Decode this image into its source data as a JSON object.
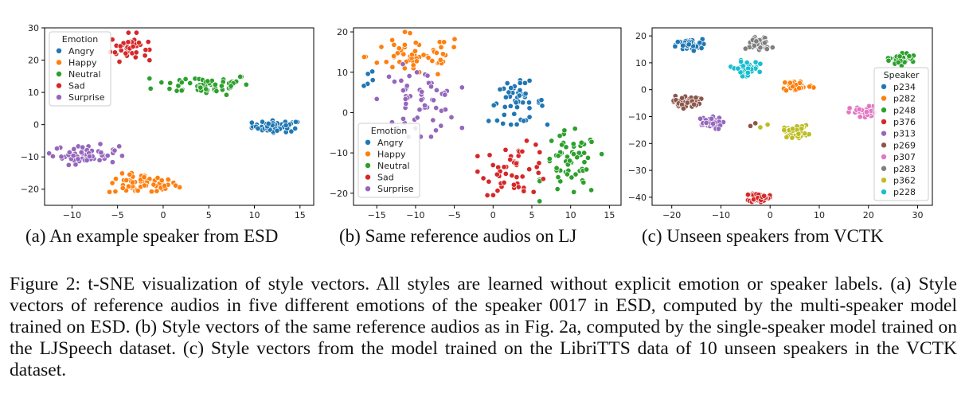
{
  "subcaptions": [
    "(a)  An example speaker from ESD",
    "(b)  Same reference audios on LJ",
    "(c)  Unseen speakers from VCTK"
  ],
  "figure_caption": "Figure 2: t-SNE visualization of style vectors.  All styles are learned without explicit emotion or speaker labels. (a) Style vectors of reference audios in five different emotions of the speaker 0017 in ESD, computed by the multi-speaker model trained on ESD. (b) Style vectors of the same reference audios as in Fig. 2a, computed by the single-speaker model trained on the LJSpeech dataset. (c) Style vectors from the model trained on the LibriTTS data of 10 unseen speakers in the VCTK dataset.",
  "chart_data": [
    {
      "type": "scatter",
      "legend_title": "Emotion",
      "legend_position": "top-left",
      "grid": false,
      "xlim": [
        -13,
        16.5
      ],
      "ylim": [
        -25,
        30
      ],
      "xticks": [
        -10,
        -5,
        0,
        5,
        10,
        15
      ],
      "yticks": [
        -20,
        -10,
        0,
        10,
        20,
        30
      ],
      "series": [
        {
          "name": "Angry",
          "color": "#1f77b4",
          "clusters": [
            [
              9.5,
              -2.5,
              15.5,
              1.5,
              60,
              "blob"
            ]
          ]
        },
        {
          "name": "Happy",
          "color": "#ff7f0e",
          "clusters": [
            [
              -6.5,
              -22,
              2,
              -15,
              60,
              "blob"
            ]
          ]
        },
        {
          "name": "Neutral",
          "color": "#2ca02c",
          "clusters": [
            [
              -1.5,
              9,
              10.5,
              16,
              60,
              "blob"
            ]
          ]
        },
        {
          "name": "Sad",
          "color": "#d62728",
          "clusters": [
            [
              -6,
              19.5,
              -1.5,
              28.5,
              40,
              "blob"
            ]
          ]
        },
        {
          "name": "Surprise",
          "color": "#9467bd",
          "clusters": [
            [
              -12.5,
              -12.5,
              -4.5,
              -6,
              60,
              "blob"
            ]
          ]
        }
      ]
    },
    {
      "type": "scatter",
      "legend_title": "Emotion",
      "legend_position": "lower-left",
      "grid": false,
      "xlim": [
        -18,
        16.5
      ],
      "ylim": [
        -23,
        21
      ],
      "xticks": [
        -15,
        -10,
        -5,
        0,
        5,
        10,
        15
      ],
      "yticks": [
        -20,
        -10,
        0,
        10,
        20
      ],
      "series": [
        {
          "name": "Angry",
          "color": "#1f77b4",
          "clusters": [
            [
              -1,
              -3,
              7,
              8,
              50,
              "blob"
            ],
            [
              -17,
              5,
              -15,
              12,
              5,
              "blob"
            ]
          ]
        },
        {
          "name": "Happy",
          "color": "#ff7f0e",
          "clusters": [
            [
              -17,
              8,
              -3,
              20,
              60,
              "blob"
            ]
          ]
        },
        {
          "name": "Neutral",
          "color": "#2ca02c",
          "clusters": [
            [
              6,
              -22,
              14,
              -4,
              60,
              "blob"
            ]
          ]
        },
        {
          "name": "Sad",
          "color": "#d62728",
          "clusters": [
            [
              -2,
              -21,
              8,
              -7,
              50,
              "blob"
            ]
          ]
        },
        {
          "name": "Surprise",
          "color": "#9467bd",
          "clusters": [
            [
              -15,
              -6,
              -4,
              12,
              60,
              "blob"
            ]
          ]
        }
      ]
    },
    {
      "type": "scatter",
      "legend_title": "Speaker",
      "legend_position": "right",
      "grid": false,
      "xlim": [
        -24,
        33
      ],
      "ylim": [
        -43,
        23
      ],
      "xticks": [
        -20,
        -10,
        0,
        10,
        20,
        30
      ],
      "yticks": [
        -40,
        -30,
        -20,
        -10,
        0,
        10,
        20
      ],
      "series": [
        {
          "name": "p234",
          "color": "#1f77b4",
          "clusters": [
            [
              -19.5,
              14,
              -13.5,
              19,
              45,
              "blob"
            ]
          ]
        },
        {
          "name": "p282",
          "color": "#ff7f0e",
          "clusters": [
            [
              2,
              -1,
              9,
              4,
              45,
              "blob"
            ]
          ]
        },
        {
          "name": "p248",
          "color": "#2ca02c",
          "clusters": [
            [
              24,
              9,
              30,
              14,
              45,
              "blob"
            ]
          ]
        },
        {
          "name": "p376",
          "color": "#d62728",
          "clusters": [
            [
              -4.5,
              -42,
              0,
              -38,
              40,
              "blob"
            ]
          ]
        },
        {
          "name": "p313",
          "color": "#9467bd",
          "clusters": [
            [
              -15.5,
              -15,
              -9.5,
              -10,
              45,
              "blob"
            ]
          ]
        },
        {
          "name": "p269",
          "color": "#8c564b",
          "clusters": [
            [
              -20,
              -7,
              -14,
              -2,
              45,
              "blob"
            ],
            [
              -4,
              -13.5,
              -3,
              -12.5,
              2,
              "line"
            ]
          ]
        },
        {
          "name": "p307",
          "color": "#e377c2",
          "clusters": [
            [
              16,
              -11,
              22,
              -6,
              45,
              "blob"
            ]
          ]
        },
        {
          "name": "p283",
          "color": "#7f7f7f",
          "clusters": [
            [
              -5,
              14,
              0.5,
              20,
              45,
              "blob"
            ]
          ]
        },
        {
          "name": "p362",
          "color": "#bcbd22",
          "clusters": [
            [
              2.5,
              -18,
              8,
              -13,
              45,
              "blob"
            ],
            [
              -2,
              -14,
              -0.5,
              -13,
              2,
              "line"
            ]
          ]
        },
        {
          "name": "p228",
          "color": "#17becf",
          "clusters": [
            [
              -8,
              5,
              -2,
              11,
              45,
              "blob"
            ]
          ]
        }
      ]
    }
  ]
}
